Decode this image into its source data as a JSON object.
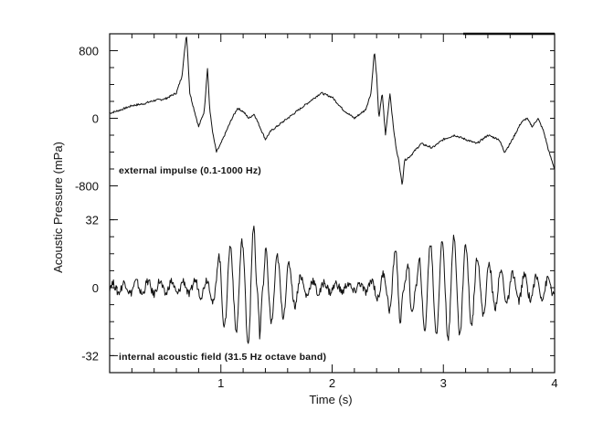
{
  "chart_data": {
    "type": "line",
    "xlabel": "Time (s)",
    "ylabel": "Acoustic Pressure (mPa)",
    "xlim": [
      0,
      4
    ],
    "x_ticks": [
      "1",
      "2",
      "3",
      "4"
    ],
    "grid": false,
    "panels": [
      {
        "label": "external impulse (0.1-1000 Hz)",
        "ylim": [
          -1000,
          1000
        ],
        "y_ticks": [
          "800",
          "0",
          "-800"
        ],
        "y_tick_values": [
          800,
          0,
          -800
        ],
        "series": [
          {
            "x": [
              0.0,
              0.1,
              0.2,
              0.3,
              0.4,
              0.5,
              0.6,
              0.65,
              0.69,
              0.7,
              0.72,
              0.76,
              0.8,
              0.85,
              0.88,
              0.9,
              0.93,
              0.96,
              1.0,
              1.05,
              1.1,
              1.15,
              1.2,
              1.25,
              1.3,
              1.35,
              1.4,
              1.45,
              1.5,
              1.55,
              1.6,
              1.7,
              1.8,
              1.9,
              2.0,
              2.1,
              2.2,
              2.3,
              2.35,
              2.38,
              2.4,
              2.42,
              2.45,
              2.48,
              2.52,
              2.55,
              2.58,
              2.6,
              2.63,
              2.65,
              2.7,
              2.8,
              2.9,
              3.0,
              3.1,
              3.2,
              3.3,
              3.4,
              3.5,
              3.55,
              3.6,
              3.7,
              3.75,
              3.8,
              3.85,
              3.9,
              3.95,
              4.0
            ],
            "y": [
              60,
              100,
              150,
              170,
              210,
              230,
              300,
              500,
              1000,
              800,
              300,
              100,
              -100,
              80,
              600,
              100,
              -200,
              -400,
              -300,
              -150,
              0,
              120,
              80,
              0,
              50,
              -100,
              -250,
              -150,
              -100,
              -50,
              0,
              100,
              200,
              300,
              250,
              100,
              0,
              100,
              300,
              800,
              500,
              0,
              300,
              -200,
              300,
              -100,
              -400,
              -500,
              -800,
              -500,
              -450,
              -300,
              -350,
              -250,
              -200,
              -250,
              -300,
              -200,
              -250,
              -400,
              -300,
              -50,
              0,
              -100,
              0,
              -150,
              -400,
              -600
            ]
          }
        ]
      },
      {
        "label": "internal acoustic field (31.5 Hz octave band)",
        "ylim": [
          -40,
          40
        ],
        "y_ticks": [
          "32",
          "0",
          "-32"
        ],
        "y_tick_values": [
          32,
          0,
          -32
        ],
        "series": [
          {
            "x": [
              0.0,
              0.3,
              0.6,
              0.9,
              0.95,
              1.0,
              1.1,
              1.2,
              1.3,
              1.35,
              1.4,
              1.6,
              1.75,
              2.0,
              2.3,
              2.5,
              2.55,
              2.6,
              2.7,
              2.8,
              3.0,
              3.1,
              3.3,
              3.5,
              3.7,
              4.0
            ],
            "y": [
              2,
              3,
              3,
              4,
              10,
              18,
              20,
              22,
              30,
              -25,
              18,
              12,
              4,
              2,
              2,
              8,
              16,
              22,
              -22,
              20,
              22,
              25,
              15,
              8,
              6,
              4
            ]
          }
        ]
      }
    ]
  }
}
